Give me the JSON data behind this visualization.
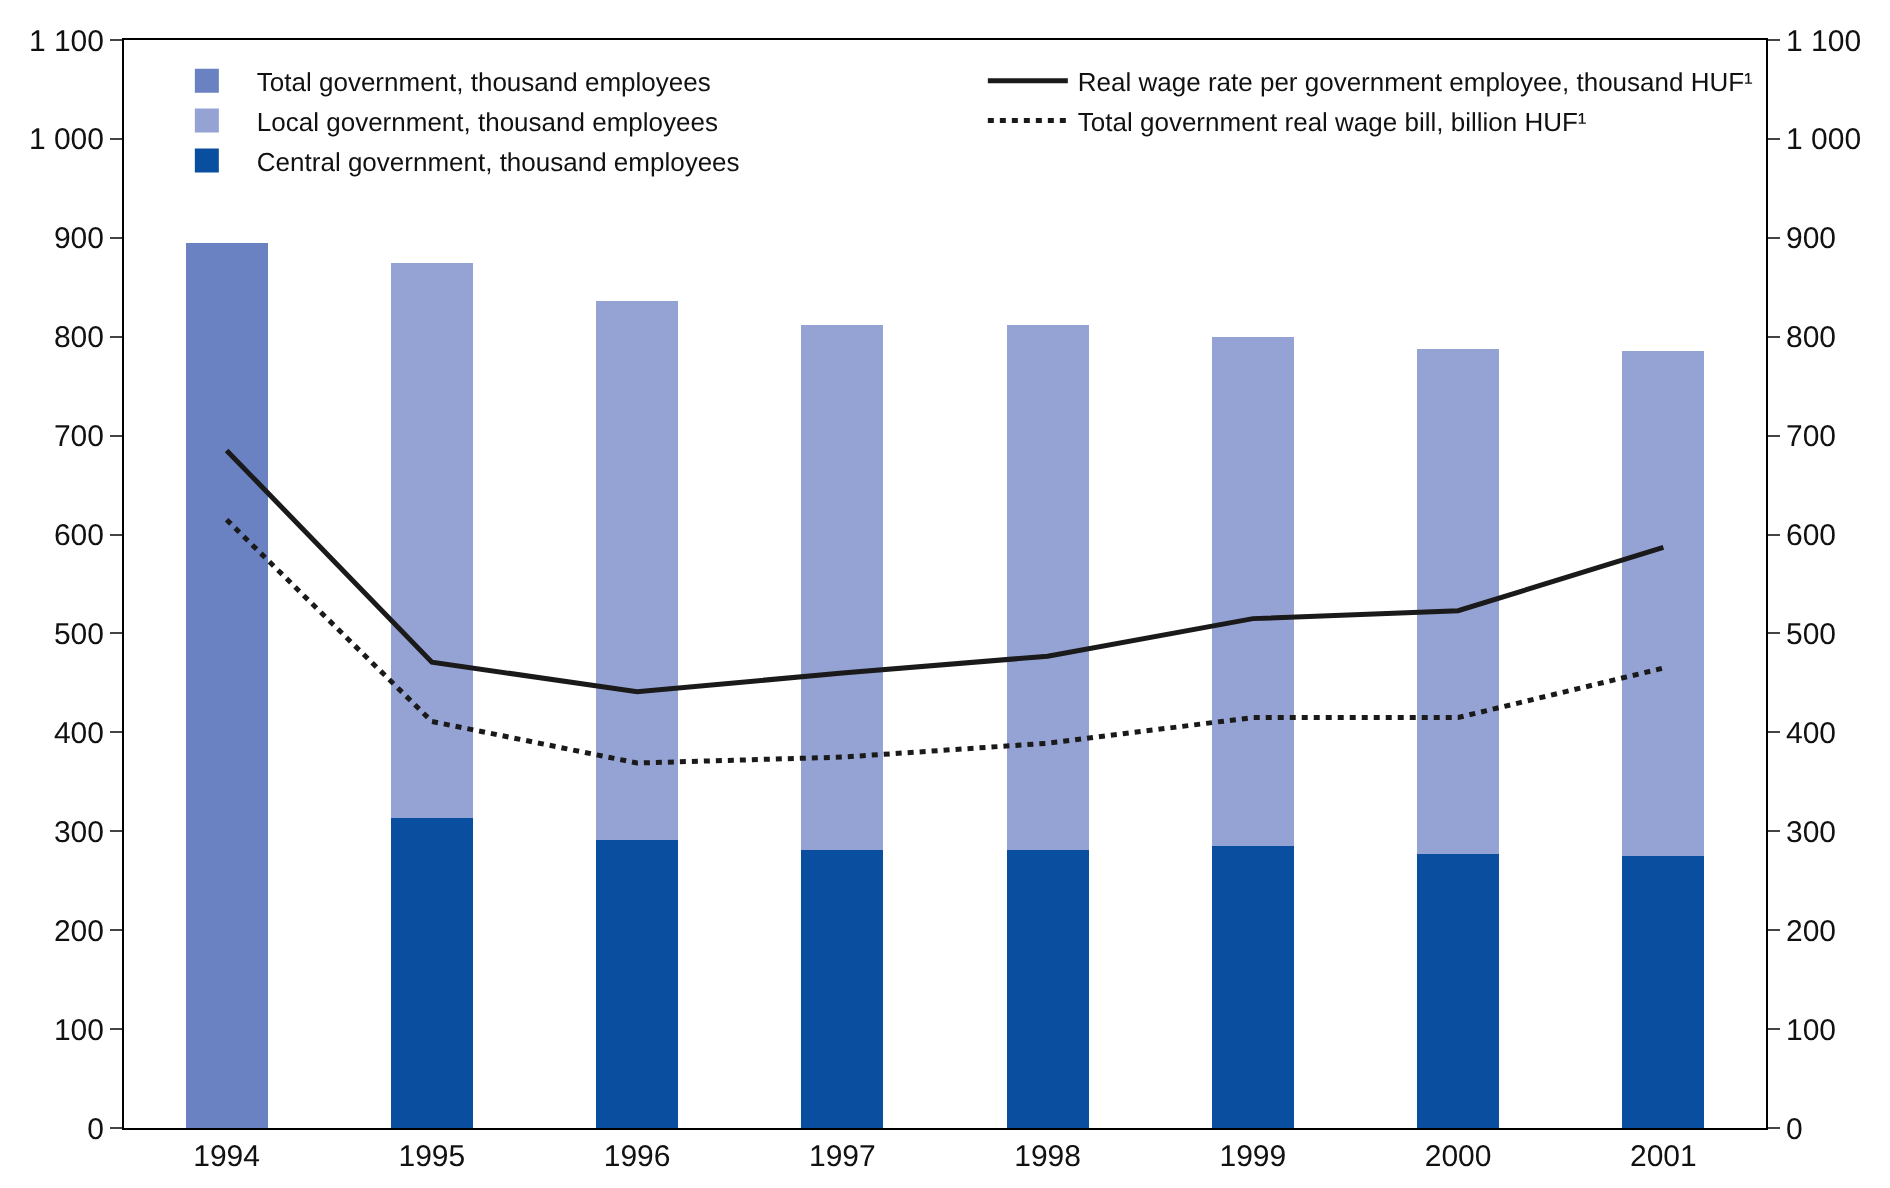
{
  "chart_data": {
    "type": "bar",
    "stacked": true,
    "categories": [
      "1994",
      "1995",
      "1996",
      "1997",
      "1998",
      "1999",
      "2000",
      "2001"
    ],
    "series": [
      {
        "name": "Central government, thousand employees",
        "color": "#0a4ea0",
        "values": [
          null,
          313,
          291,
          281,
          281,
          285,
          277,
          275
        ]
      },
      {
        "name": "Local government, thousand employees",
        "color": "#94a3d3",
        "values": [
          null,
          562,
          545,
          531,
          531,
          515,
          511,
          511
        ]
      },
      {
        "name": "Total government, thousand employees",
        "color": "#6b82c2",
        "values": [
          895,
          null,
          null,
          null,
          null,
          null,
          null,
          null
        ]
      },
      {
        "name": "Real wage rate per government employee, thousand HUF¹",
        "type": "line",
        "axis": "y2",
        "color": "#1a1a1a",
        "line_style": "solid",
        "values": [
          685,
          471,
          441,
          460,
          477,
          515,
          523,
          587
        ]
      },
      {
        "name": "Total government real wage bill, billion HUF¹",
        "type": "line",
        "axis": "y2",
        "color": "#1a1a1a",
        "line_style": "dotted",
        "values": [
          615,
          411,
          369,
          375,
          389,
          415,
          415,
          465
        ]
      }
    ],
    "ylim": [
      0,
      1100
    ],
    "yticks": [
      0,
      100,
      200,
      300,
      400,
      500,
      600,
      700,
      800,
      900,
      {
        "value": 1000,
        "label": "1 000"
      },
      {
        "value": 1100,
        "label": "1 100"
      }
    ],
    "y2lim": [
      0,
      1100
    ],
    "y2ticks": [
      0,
      100,
      200,
      300,
      400,
      500,
      600,
      700,
      800,
      900,
      {
        "value": 1000,
        "label": "1 000"
      },
      {
        "value": 1100,
        "label": "1 100"
      }
    ],
    "legend": "top",
    "marker": "none"
  }
}
